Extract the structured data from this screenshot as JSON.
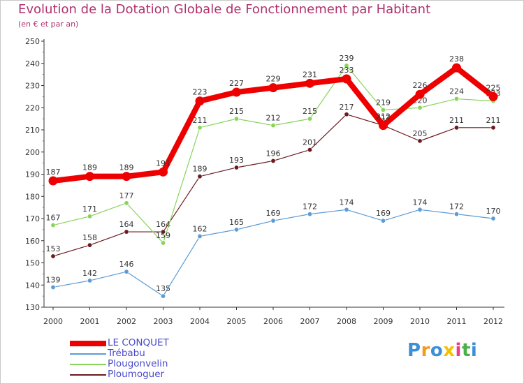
{
  "chart_data": {
    "type": "line",
    "title": "Evolution de la Dotation Globale de Fonctionnement par Habitant",
    "subtitle": "(en € et par an)",
    "xlabel": "",
    "ylabel": "",
    "ylim": [
      130,
      250
    ],
    "y_ticks": [
      130,
      140,
      150,
      160,
      170,
      180,
      190,
      200,
      210,
      220,
      230,
      240,
      250
    ],
    "categories": [
      "2000",
      "2001",
      "2002",
      "2003",
      "2004",
      "2005",
      "2006",
      "2007",
      "2008",
      "2009",
      "2010",
      "2011",
      "2012"
    ],
    "grid": false,
    "legend_position": "bottom-left",
    "series": [
      {
        "name": "Ploumoguer",
        "color": "#6b1a1f",
        "values": [
          153,
          158,
          164,
          164,
          189,
          193,
          196,
          201,
          217,
          212,
          205,
          211,
          211
        ]
      },
      {
        "name": "Plougonvelin",
        "color": "#88d45a",
        "values": [
          167,
          171,
          177,
          159,
          211,
          215,
          212,
          215,
          239,
          219,
          220,
          224,
          223
        ]
      },
      {
        "name": "Trébabu",
        "color": "#5c9bd4",
        "values": [
          139,
          142,
          146,
          135,
          162,
          165,
          169,
          172,
          174,
          169,
          174,
          172,
          170
        ]
      },
      {
        "name": "LE CONQUET",
        "color": "#ee0000",
        "values": [
          187,
          189,
          189,
          191,
          223,
          227,
          229,
          231,
          233,
          212,
          226,
          238,
          225
        ]
      }
    ]
  },
  "legend": [
    {
      "label": "LE CONQUET",
      "color": "#ee0000",
      "width": "thick"
    },
    {
      "label": "Trébabu",
      "color": "#5c9bd4",
      "width": "thin"
    },
    {
      "label": "Plougonvelin",
      "color": "#88d45a",
      "width": "thin"
    },
    {
      "label": "Ploumoguer",
      "color": "#6b1a1f",
      "width": "thin"
    }
  ],
  "logo": {
    "letters": [
      "P",
      "r",
      "o",
      "x",
      "i",
      "t",
      "i"
    ],
    "colors": [
      "#3a8fd6",
      "#f29a1c",
      "#3a8fd6",
      "#f2c200",
      "#e83e8c",
      "#49b04b",
      "#3a8fd6"
    ]
  }
}
